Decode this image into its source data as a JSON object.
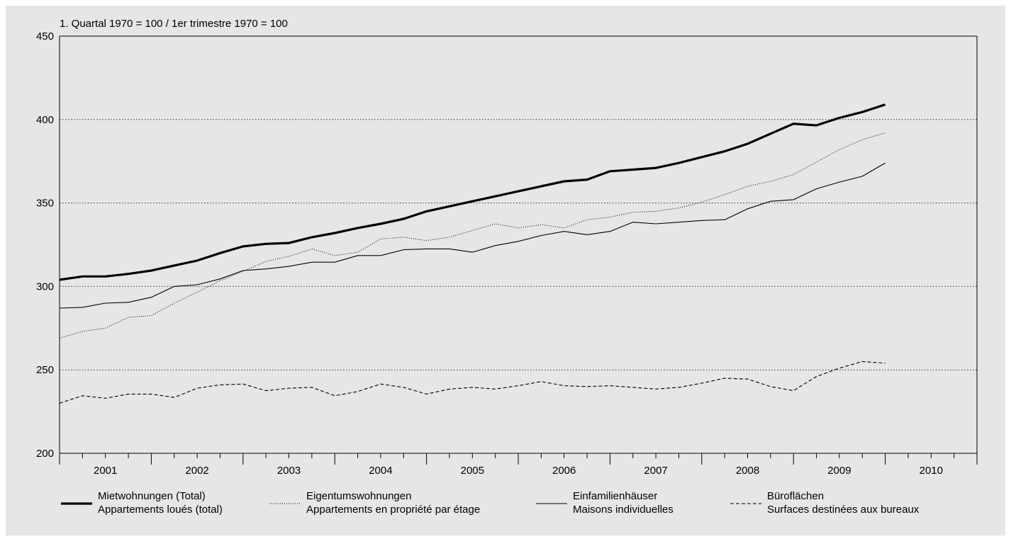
{
  "chart_data": {
    "type": "line",
    "unit_label": "1. Quartal 1970 = 100 / 1er trimestre 1970 = 100",
    "ylim": [
      200,
      450
    ],
    "y_ticks": [
      "200",
      "250",
      "300",
      "350",
      "400",
      "450"
    ],
    "x_ticks": [
      "2001",
      "2002",
      "2003",
      "2004",
      "2005",
      "2006",
      "2007",
      "2008",
      "2009",
      "2010"
    ],
    "grid": "horizontal dotted",
    "legend_position": "bottom",
    "x_quarters": [
      "2000Q4",
      "2001Q1",
      "2001Q2",
      "2001Q3",
      "2001Q4",
      "2002Q1",
      "2002Q2",
      "2002Q3",
      "2002Q4",
      "2003Q1",
      "2003Q2",
      "2003Q3",
      "2003Q4",
      "2004Q1",
      "2004Q2",
      "2004Q3",
      "2004Q4",
      "2005Q1",
      "2005Q2",
      "2005Q3",
      "2005Q4",
      "2006Q1",
      "2006Q2",
      "2006Q3",
      "2006Q4",
      "2007Q1",
      "2007Q2",
      "2007Q3",
      "2007Q4",
      "2008Q1",
      "2008Q2",
      "2008Q3",
      "2008Q4",
      "2009Q1",
      "2009Q2",
      "2009Q3",
      "2009Q4"
    ],
    "series": [
      {
        "name_de": "Mietwohnungen (Total)",
        "name_fr": "Appartements loués (total)",
        "style": "thick",
        "color": "#000000",
        "values": [
          304,
          306,
          306,
          307.5,
          309.5,
          312.5,
          315.5,
          320,
          324,
          325.5,
          326,
          329.5,
          332,
          335,
          337.5,
          340.5,
          345,
          348,
          351,
          354,
          357,
          360,
          363,
          364,
          369,
          370,
          371,
          374,
          377.5,
          381,
          385.5,
          391.5,
          397.5,
          396.5,
          401,
          404.5,
          409
        ]
      },
      {
        "name_de": "Eigentumswohnungen",
        "name_fr": "Appartements en propriété par étage",
        "style": "dotted",
        "color": "#000000",
        "values": [
          269,
          273,
          275,
          281.5,
          282.5,
          290,
          296.5,
          303.5,
          309,
          315,
          318,
          322.5,
          318.5,
          320.5,
          328.5,
          329.5,
          327.5,
          329.5,
          333.5,
          337.5,
          335,
          337,
          335,
          340,
          341.5,
          344.5,
          345,
          347,
          350.5,
          355,
          360,
          363,
          367,
          374.5,
          382,
          388,
          392
        ]
      },
      {
        "name_de": "Einfamilienhäuser",
        "name_fr": "Maisons individuelles",
        "style": "thin",
        "color": "#000000",
        "values": [
          287,
          287.5,
          290,
          290.5,
          293.5,
          300,
          301,
          304.5,
          309.5,
          310.5,
          312,
          314.5,
          314.5,
          318.5,
          318.5,
          322,
          322.5,
          322.5,
          320.5,
          324.5,
          327,
          330.5,
          333,
          331,
          333,
          338.5,
          337.5,
          338.5,
          339.5,
          340,
          346.5,
          351,
          352,
          358.5,
          362.5,
          366,
          374
        ]
      },
      {
        "name_de": "Büroflächen",
        "name_fr": "Surfaces destinées aux bureaux",
        "style": "dashed",
        "color": "#000000",
        "values": [
          230,
          234.5,
          233,
          235.5,
          235.5,
          233.5,
          239,
          241,
          241.5,
          237.5,
          239,
          239.5,
          234.5,
          237,
          241.5,
          239.5,
          235.5,
          238.5,
          239.5,
          238.5,
          240.5,
          243,
          240.5,
          240,
          240.5,
          239.5,
          238.5,
          239.5,
          242,
          245,
          244.5,
          240,
          237.5,
          246,
          251,
          255,
          254
        ]
      }
    ]
  }
}
